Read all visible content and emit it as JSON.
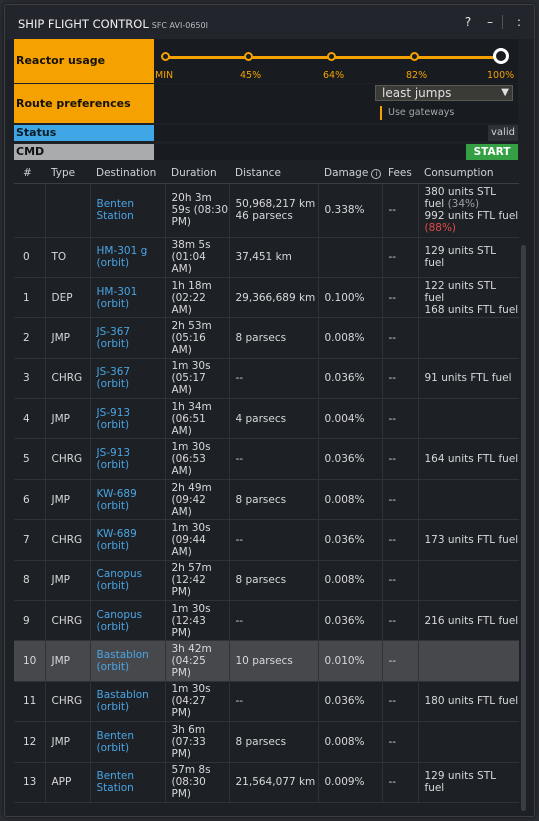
{
  "window": {
    "title": "SHIP FLIGHT CONTROL",
    "subtitle": "SFC AVI-0650I",
    "help": "?",
    "minimize": "–",
    "close": ":"
  },
  "reactor": {
    "label": "Reactor usage",
    "stops": [
      "MIN",
      "45%",
      "64%",
      "82%",
      "100%"
    ],
    "selected": "100%",
    "accent": "#f5a200"
  },
  "route": {
    "label": "Route preferences",
    "select_value": "least jumps",
    "use_gateways": "Use gateways"
  },
  "status": {
    "label": "Status",
    "value": "valid",
    "color": "#3fa7e6"
  },
  "cmd": {
    "label": "CMD",
    "start": "START",
    "start_color": "#35a043"
  },
  "table": {
    "headers": [
      "#",
      "Type",
      "Destination",
      "Duration",
      "Distance",
      "Damage",
      "Fees",
      "Consumption"
    ],
    "info_icon": "i",
    "rows": [
      {
        "num": "",
        "type": "",
        "dest": "Benten Station",
        "dur": "20h 3m 59s (08:30 PM)",
        "dist": "50,968,217 km 46 parsecs",
        "dmg": "0.338%",
        "fees": "--",
        "cons_a": "380 units STL fuel",
        "cons_a_pct": "(34%)",
        "cons_b": "992 units FTL fuel",
        "cons_b_pct": "(88%)"
      },
      {
        "num": "0",
        "type": "TO",
        "dest": "HM-301 g (orbit)",
        "dur": "38m 5s (01:04 AM)",
        "dist": "37,451 km",
        "dmg": "",
        "fees": "--",
        "cons_a": "129 units STL fuel"
      },
      {
        "num": "1",
        "type": "DEP",
        "dest": "HM-301 (orbit)",
        "dur": "1h 18m (02:22 AM)",
        "dist": "29,366,689 km",
        "dmg": "0.100%",
        "fees": "--",
        "cons_a": "122 units STL fuel",
        "cons_b": "168 units FTL fuel"
      },
      {
        "num": "2",
        "type": "JMP",
        "dest": "JS-367 (orbit)",
        "dur": "2h 53m (05:16 AM)",
        "dist": "8 parsecs",
        "dmg": "0.008%",
        "fees": "--",
        "cons_a": ""
      },
      {
        "num": "3",
        "type": "CHRG",
        "dest": "JS-367 (orbit)",
        "dur": "1m 30s (05:17 AM)",
        "dist": "--",
        "dmg": "0.036%",
        "fees": "--",
        "cons_a": "91 units FTL fuel"
      },
      {
        "num": "4",
        "type": "JMP",
        "dest": "JS-913 (orbit)",
        "dur": "1h 34m (06:51 AM)",
        "dist": "4 parsecs",
        "dmg": "0.004%",
        "fees": "--",
        "cons_a": ""
      },
      {
        "num": "5",
        "type": "CHRG",
        "dest": "JS-913 (orbit)",
        "dur": "1m 30s (06:53 AM)",
        "dist": "--",
        "dmg": "0.036%",
        "fees": "--",
        "cons_a": "164 units FTL fuel"
      },
      {
        "num": "6",
        "type": "JMP",
        "dest": "KW-689 (orbit)",
        "dur": "2h 49m (09:42 AM)",
        "dist": "8 parsecs",
        "dmg": "0.008%",
        "fees": "--",
        "cons_a": ""
      },
      {
        "num": "7",
        "type": "CHRG",
        "dest": "KW-689 (orbit)",
        "dur": "1m 30s (09:44 AM)",
        "dist": "--",
        "dmg": "0.036%",
        "fees": "--",
        "cons_a": "173 units FTL fuel"
      },
      {
        "num": "8",
        "type": "JMP",
        "dest": "Canopus (orbit)",
        "dur": "2h 57m (12:42 PM)",
        "dist": "8 parsecs",
        "dmg": "0.008%",
        "fees": "--",
        "cons_a": ""
      },
      {
        "num": "9",
        "type": "CHRG",
        "dest": "Canopus (orbit)",
        "dur": "1m 30s (12:43 PM)",
        "dist": "--",
        "dmg": "0.036%",
        "fees": "--",
        "cons_a": "216 units FTL fuel"
      },
      {
        "num": "10",
        "type": "JMP",
        "dest": "Bastablon (orbit)",
        "dur": "3h 42m (04:25 PM)",
        "dist": "10 parsecs",
        "dmg": "0.010%",
        "fees": "--",
        "cons_a": "",
        "selected": true
      },
      {
        "num": "11",
        "type": "CHRG",
        "dest": "Bastablon (orbit)",
        "dur": "1m 30s (04:27 PM)",
        "dist": "--",
        "dmg": "0.036%",
        "fees": "--",
        "cons_a": "180 units FTL fuel"
      },
      {
        "num": "12",
        "type": "JMP",
        "dest": "Benten (orbit)",
        "dur": "3h 6m (07:33 PM)",
        "dist": "8 parsecs",
        "dmg": "0.008%",
        "fees": "--",
        "cons_a": ""
      },
      {
        "num": "13",
        "type": "APP",
        "dest": "Benten Station",
        "dur": "57m 8s (08:30 PM)",
        "dist": "21,564,077 km",
        "dmg": "0.009%",
        "fees": "--",
        "cons_a": "129 units STL fuel"
      }
    ]
  }
}
